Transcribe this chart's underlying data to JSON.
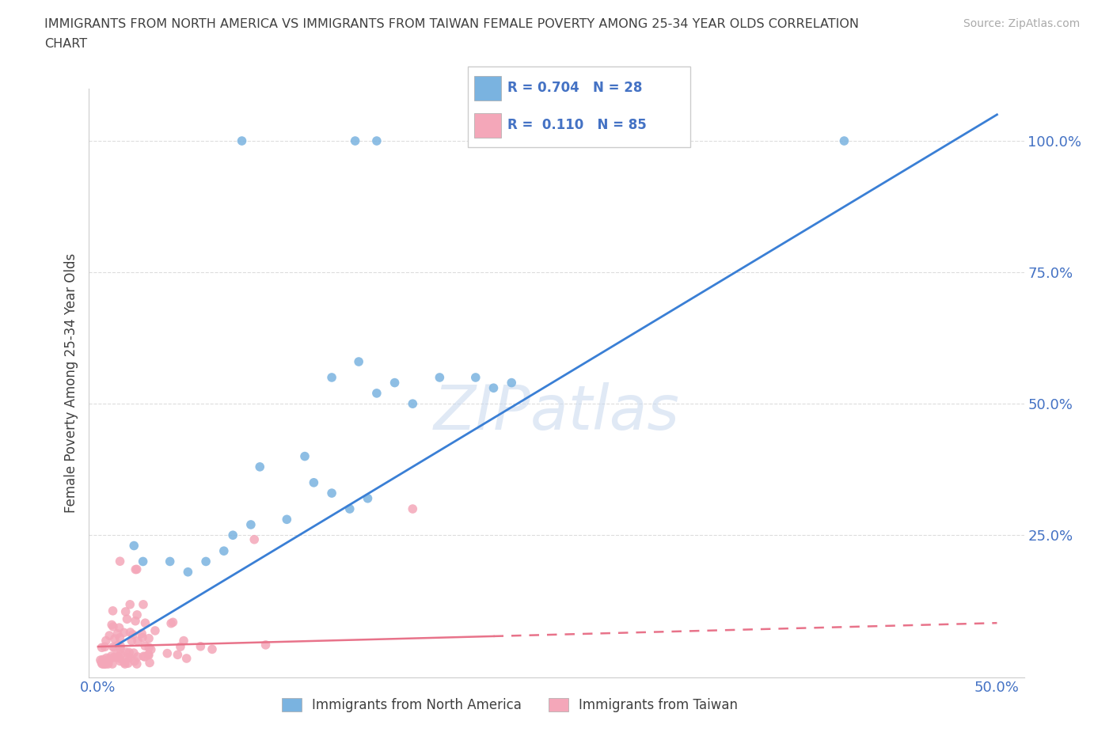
{
  "title_line1": "IMMIGRANTS FROM NORTH AMERICA VS IMMIGRANTS FROM TAIWAN FEMALE POVERTY AMONG 25-34 YEAR OLDS CORRELATION",
  "title_line2": "CHART",
  "source": "Source: ZipAtlas.com",
  "ylabel": "Female Poverty Among 25-34 Year Olds",
  "blue_color": "#7ab3e0",
  "pink_color": "#f4a7b9",
  "blue_line_color": "#3a7fd5",
  "pink_line_color": "#e8738a",
  "R_blue": 0.704,
  "N_blue": 28,
  "R_pink": 0.11,
  "N_pink": 85,
  "legend_label_blue": "Immigrants from North America",
  "legend_label_pink": "Immigrants from Taiwan",
  "watermark": "ZIPatlas",
  "background_color": "#ffffff",
  "grid_color": "#dddddd",
  "axis_color": "#4472c4",
  "title_color": "#404040"
}
